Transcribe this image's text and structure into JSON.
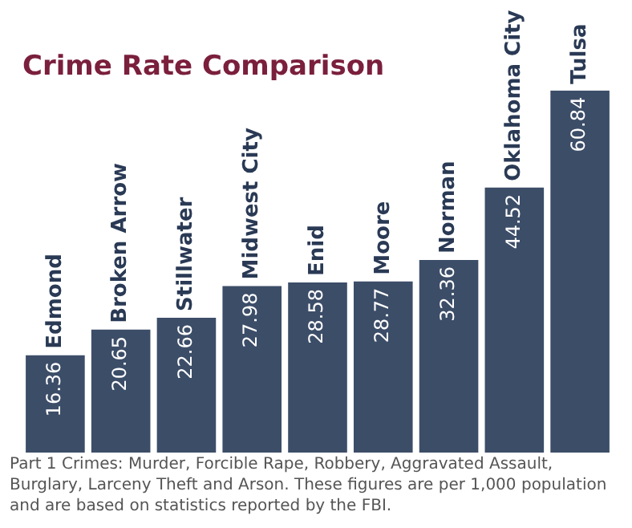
{
  "chart_data": {
    "type": "bar",
    "title": "Crime Rate Comparison",
    "categories": [
      "Edmond",
      "Broken Arrow",
      "Stillwater",
      "Midwest City",
      "Enid",
      "Moore",
      "Norman",
      "Oklahoma City",
      "Tulsa"
    ],
    "values": [
      16.36,
      20.65,
      22.66,
      27.98,
      28.58,
      28.77,
      32.36,
      44.52,
      60.84
    ],
    "color": "#3c4d68",
    "data_labels": true,
    "annotations": [
      "Part 1 Crimes: Murder, Forcible Rape, Robbery, Aggravated Assault, Burglary, Larceny Theft and Arson. These figures are per 1,000 population and are based on statistics reported by the FBI."
    ]
  }
}
